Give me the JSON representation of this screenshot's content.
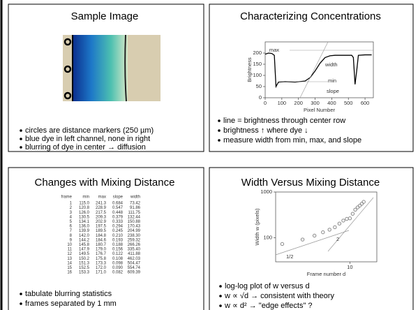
{
  "panels": [
    {
      "title": "Sample Image",
      "bullets": [
        "circles are distance markers (250 µm)",
        "blue dye in left channel, none in right",
        "blurring of dye in center → diffusion"
      ]
    },
    {
      "title": "Characterizing Concentrations",
      "chart": {
        "type": "line",
        "x_label": "Pixel Number",
        "y_label": "Brightness",
        "x": [
          0,
          20,
          40,
          55,
          65,
          80,
          120,
          180,
          240,
          270,
          300,
          330,
          360,
          390,
          420,
          480,
          520,
          530,
          540,
          550,
          560,
          600,
          640
        ],
        "values": [
          195,
          200,
          198,
          190,
          50,
          70,
          72,
          70,
          75,
          90,
          120,
          155,
          180,
          188,
          190,
          190,
          190,
          180,
          60,
          120,
          190,
          192,
          192
        ],
        "color": "#000000",
        "xlim": [
          0,
          650
        ],
        "ylim": [
          0,
          250
        ],
        "xticks": [
          0,
          100,
          200,
          300,
          400,
          500,
          600
        ],
        "yticks": [
          0,
          50,
          100,
          150,
          200
        ],
        "annotations": [
          "max",
          "width",
          "min",
          "slope"
        ]
      },
      "bullets": [
        "line = brightness through center row",
        "brightness ↑ where dye ↓",
        "measure width from min, max, and slope"
      ]
    },
    {
      "title": "Changes with Mixing Distance",
      "table": {
        "columns": [
          "frame",
          "min",
          "max",
          "slope",
          "width"
        ],
        "rows": [
          [
            "1",
            "115.0",
            "241.3",
            "0.684",
            "73.42"
          ],
          [
            "2",
            "120.8",
            "228.9",
            "0.547",
            "91.86"
          ],
          [
            "3",
            "126.0",
            "217.5",
            "0.448",
            "111.75"
          ],
          [
            "4",
            "130.5",
            "209.3",
            "0.379",
            "132.44"
          ],
          [
            "5",
            "134.1",
            "202.9",
            "0.333",
            "150.88"
          ],
          [
            "6",
            "136.0",
            "197.5",
            "0.294",
            "170.43"
          ],
          [
            "7",
            "139.9",
            "189.5",
            "0.245",
            "204.99"
          ],
          [
            "8",
            "142.0",
            "184.8",
            "0.210",
            "238.30"
          ],
          [
            "9",
            "144.2",
            "184.6",
            "0.193",
            "259.32"
          ],
          [
            "10",
            "145.8",
            "180.7",
            "0.188",
            "266.26"
          ],
          [
            "11",
            "147.9",
            "179.0",
            "0.156",
            "335.40"
          ],
          [
            "12",
            "149.5",
            "176.7",
            "0.122",
            "411.88"
          ],
          [
            "13",
            "150.2",
            "175.8",
            "0.108",
            "462.03"
          ],
          [
            "14",
            "151.3",
            "173.3",
            "0.098",
            "504.47"
          ],
          [
            "15",
            "152.5",
            "172.0",
            "0.090",
            "554.74"
          ],
          [
            "16",
            "153.3",
            "171.0",
            "0.082",
            "609.39"
          ]
        ]
      },
      "bullets": [
        "tabulate blurring statistics",
        "frames separated by 1 mm"
      ]
    },
    {
      "title": "Width  Versus Mixing Distance",
      "chart": {
        "type": "scatter",
        "x_label": "Frame number d",
        "y_label": "Width w (pixels)",
        "log": true,
        "xlim": [
          0.8,
          25
        ],
        "ylim": [
          30,
          1000
        ],
        "xticks": [
          10
        ],
        "yticks": [
          100,
          1000
        ],
        "color": "#888888",
        "annotations": [
          "1/2",
          "2"
        ]
      },
      "bullets": [
        "log-log plot of w versus d",
        "w ∝ √d → consistent with theory",
        "w ∝ d² → \"edge effects\" ?"
      ]
    }
  ]
}
